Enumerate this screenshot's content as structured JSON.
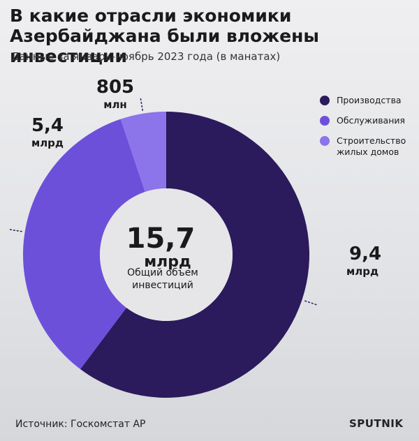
{
  "chart_data": {
    "type": "donut",
    "title": "В какие отрасли экономики Азербайджана были вложены инвестиции",
    "subtitle": "Данные за январь-ноябрь 2023 года (в манатах)",
    "series": [
      {
        "name": "Производства",
        "color": "#2b1a5c"
      },
      {
        "name": "Обслуживания",
        "color": "#6c50da"
      },
      {
        "name": "Строительство жилых домов",
        "color": "#8c74ea"
      }
    ],
    "values": [
      9.4,
      5.4,
      0.805
    ],
    "value_labels": [
      "9,4 млрд",
      "5,4 млрд",
      "805 млн"
    ],
    "center_label": "15,7 млрд",
    "center_caption": "Общий объем инвестиций",
    "source": "Источник: Госкомстат АР",
    "logo": "SPUTNIK",
    "legend": "upper right"
  }
}
